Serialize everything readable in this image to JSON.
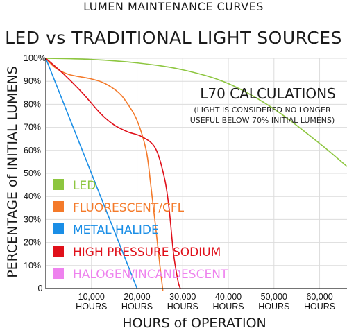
{
  "title_line1": "LUMEN MAINTENANCE CURVES",
  "title_line2": "LED vs TRADITIONAL LIGHT SOURCES",
  "chart_data": {
    "type": "line",
    "title": "LUMEN MAINTENANCE CURVES LED vs TRADITIONAL LIGHT SOURCES",
    "xlabel": "HOURS of OPERATION",
    "ylabel": "PERCENTAGE of INITIAL LUMENS",
    "xlim": [
      0,
      66000
    ],
    "ylim": [
      0,
      100
    ],
    "y_ticks": [
      "100%",
      "90%",
      "80%",
      "70%",
      "60%",
      "50%",
      "40%",
      "30%",
      "20%",
      "10%",
      "0"
    ],
    "x_ticks": [
      {
        "value": 10000,
        "line1": "10,000",
        "line2": "HOURS"
      },
      {
        "value": 20000,
        "line1": "20,000",
        "line2": "HOURS"
      },
      {
        "value": 30000,
        "line1": "30,000",
        "line2": "HOURS"
      },
      {
        "value": 40000,
        "line1": "40,000",
        "line2": "HOURS"
      },
      {
        "value": 50000,
        "line1": "50,000",
        "line2": "HOURS"
      },
      {
        "value": 60000,
        "line1": "60,000",
        "line2": "HOURS"
      }
    ],
    "grid": true,
    "annotation": {
      "title": "L70 CALCULATIONS",
      "line1": "(LIGHT IS CONSIDERED NO LONGER",
      "line2": "USEFUL BELOW 70% INITIAL LUMENS)"
    },
    "series": [
      {
        "name": "LED",
        "color": "#8dc63f",
        "x": [
          0,
          10000,
          20000,
          30000,
          40000,
          50000,
          60000,
          66000
        ],
        "y": [
          100,
          99.5,
          98,
          95,
          89,
          78,
          63,
          53
        ]
      },
      {
        "name": "FLUORESCENT/CFL",
        "color": "#f47a2a",
        "x": [
          0,
          2000,
          5000,
          10000,
          13000,
          16000,
          18000,
          20000,
          22000,
          23000,
          24000,
          25000,
          25600,
          25600
        ],
        "y": [
          100,
          96,
          93,
          91,
          89,
          85,
          80,
          73,
          60,
          45,
          28,
          10,
          0,
          0
        ]
      },
      {
        "name": "METAL HALIDE",
        "color": "#1a8ee6",
        "x": [
          0,
          20000
        ],
        "y": [
          100,
          0
        ]
      },
      {
        "name": "HIGH PRESSURE SODIUM",
        "color": "#e0101a",
        "x": [
          0,
          4000,
          8000,
          12000,
          15000,
          18000,
          21000,
          24000,
          26000,
          27000,
          28000,
          29000,
          29500
        ],
        "y": [
          100,
          93,
          85,
          76,
          71,
          68,
          66,
          61,
          48,
          35,
          15,
          3,
          0
        ]
      },
      {
        "name": "HALOGEN/INCANDESCENT",
        "color": "#ee82ee",
        "x": [],
        "y": []
      }
    ]
  }
}
